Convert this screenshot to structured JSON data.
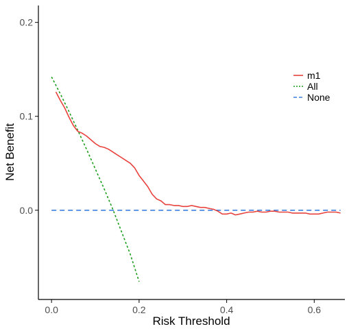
{
  "chart_data": {
    "type": "line",
    "title": "",
    "xlabel": "Risk Threshold",
    "ylabel": "Net Benefit",
    "xlim": [
      -0.03,
      0.67
    ],
    "ylim": [
      -0.095,
      0.218
    ],
    "xticks": [
      0.0,
      0.2,
      0.4,
      0.6
    ],
    "xtick_labels": [
      "0.0",
      "0.2",
      "0.4",
      "0.6"
    ],
    "yticks": [
      0.0,
      0.1,
      0.2
    ],
    "ytick_labels": [
      "0.0",
      "0.1",
      "0.2"
    ],
    "grid": false,
    "legend_position": "right",
    "series": [
      {
        "name": "m1",
        "color": "#e8413c",
        "line_style": "solid",
        "x": [
          0.01,
          0.02,
          0.03,
          0.04,
          0.05,
          0.06,
          0.07,
          0.08,
          0.09,
          0.1,
          0.11,
          0.12,
          0.13,
          0.14,
          0.15,
          0.16,
          0.17,
          0.18,
          0.19,
          0.2,
          0.21,
          0.22,
          0.23,
          0.24,
          0.25,
          0.26,
          0.27,
          0.28,
          0.29,
          0.3,
          0.31,
          0.32,
          0.33,
          0.34,
          0.35,
          0.36,
          0.37,
          0.38,
          0.39,
          0.4,
          0.41,
          0.42,
          0.43,
          0.44,
          0.45,
          0.46,
          0.47,
          0.48,
          0.49,
          0.5,
          0.51,
          0.52,
          0.53,
          0.54,
          0.55,
          0.56,
          0.57,
          0.58,
          0.59,
          0.6,
          0.61,
          0.62,
          0.63,
          0.64,
          0.65,
          0.66
        ],
        "y": [
          0.126,
          0.117,
          0.109,
          0.099,
          0.09,
          0.084,
          0.082,
          0.079,
          0.075,
          0.071,
          0.068,
          0.067,
          0.065,
          0.062,
          0.059,
          0.056,
          0.053,
          0.05,
          0.045,
          0.037,
          0.031,
          0.025,
          0.017,
          0.012,
          0.01,
          0.006,
          0.006,
          0.005,
          0.005,
          0.004,
          0.004,
          0.005,
          0.004,
          0.003,
          0.003,
          0.002,
          0.001,
          -0.001,
          -0.004,
          -0.004,
          -0.003,
          -0.005,
          -0.004,
          -0.003,
          -0.002,
          -0.002,
          -0.001,
          -0.002,
          -0.002,
          -0.001,
          -0.001,
          -0.002,
          -0.002,
          -0.002,
          -0.003,
          -0.003,
          -0.003,
          -0.003,
          -0.004,
          -0.004,
          -0.004,
          -0.003,
          -0.002,
          -0.002,
          -0.002,
          -0.003
        ]
      },
      {
        "name": "All",
        "color": "#1a9e1a",
        "line_style": "dotted",
        "x": [
          0.0,
          0.02,
          0.04,
          0.06,
          0.08,
          0.1,
          0.12,
          0.14,
          0.16,
          0.18,
          0.2
        ],
        "y": [
          0.142,
          0.124,
          0.105,
          0.085,
          0.065,
          0.044,
          0.023,
          0.001,
          -0.023,
          -0.047,
          -0.076
        ]
      },
      {
        "name": "None",
        "color": "#3b7fe0",
        "line_style": "dashed",
        "x": [
          0.0,
          0.66
        ],
        "y": [
          0.0,
          0.0
        ]
      }
    ]
  }
}
